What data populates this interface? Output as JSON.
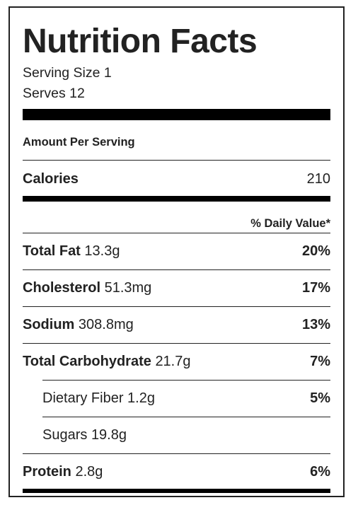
{
  "label": {
    "title": "Nutrition Facts",
    "serving_size": "Serving Size 1",
    "serves": "Serves 12",
    "amount_per_serving": "Amount Per Serving",
    "calories": {
      "name": "Calories",
      "value": "210"
    },
    "daily_value_header": "% Daily Value*",
    "nutrients": [
      {
        "name": "Total Fat",
        "amount": "13.3g",
        "percent": "20%"
      },
      {
        "name": "Cholesterol",
        "amount": "51.3mg",
        "percent": "17%"
      },
      {
        "name": "Sodium",
        "amount": "308.8mg",
        "percent": "13%"
      },
      {
        "name": "Total Carbohydrate",
        "amount": "21.7g",
        "percent": "7%"
      },
      {
        "name": "Dietary Fiber",
        "amount": "1.2g",
        "percent": "5%"
      },
      {
        "name": "Sugars",
        "amount": "19.8g",
        "percent": ""
      },
      {
        "name": "Protein",
        "amount": "2.8g",
        "percent": "6%"
      }
    ]
  }
}
